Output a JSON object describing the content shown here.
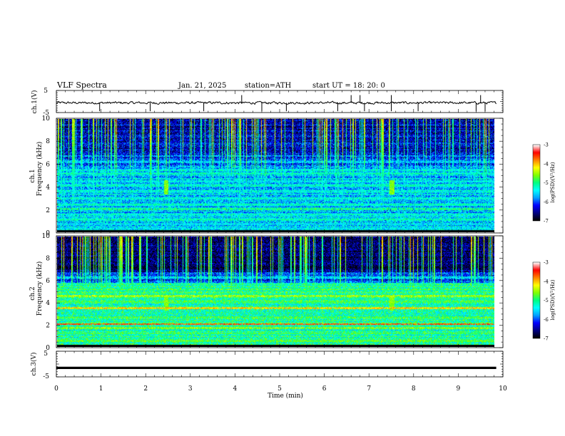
{
  "header": {
    "title": "VLF  Spectra",
    "date": "Jan. 21, 2025",
    "station": "station=ATH",
    "start": "start  UT  =   18: 20: 0"
  },
  "chart_data": [
    {
      "type": "line",
      "ylabel": "ch.1(V)",
      "ylim": [
        -5,
        5
      ],
      "yticks": [
        "5",
        "-5"
      ],
      "xlim": [
        0,
        10
      ],
      "trace": {
        "baseline": -0.6,
        "noise_amplitude": 0.6,
        "spikes_up": [
          4.15,
          6.6,
          6.8,
          7.5,
          9.5
        ],
        "spikes_down": [
          0.97,
          2.1,
          3.3,
          4.6,
          5.15,
          6.3,
          6.9,
          7.5,
          8.1,
          9.4,
          9.6
        ]
      }
    },
    {
      "type": "heatmap",
      "ylabel_top": "ch.1",
      "ylabel": "Frequency  (kHz)",
      "ylim": [
        0,
        10
      ],
      "yticks": [
        "0",
        "2",
        "4",
        "6",
        "8",
        "10"
      ],
      "xlim": [
        0,
        10
      ],
      "x_extent_min": 9.85,
      "colorbar": {
        "label": "log(PSD)(V²/Hz)",
        "range": [
          -7,
          -3
        ],
        "ticks": [
          "-3",
          "-4",
          "-5",
          "-6",
          "-7"
        ]
      },
      "bands": [
        {
          "f": 0.3,
          "level": -5.6
        },
        {
          "f": 0.7,
          "level": -5.6
        },
        {
          "f": 1.1,
          "level": -5.2
        },
        {
          "f": 1.5,
          "level": -5.4
        },
        {
          "f": 2.0,
          "level": -5.0
        },
        {
          "f": 2.4,
          "level": -5.3
        },
        {
          "f": 3.0,
          "level": -5.5
        },
        {
          "f": 3.6,
          "level": -5.4
        },
        {
          "f": 4.1,
          "level": -5.3
        },
        {
          "f": 4.5,
          "level": -5.5
        },
        {
          "f": 5.2,
          "level": -5.3
        },
        {
          "f": 5.5,
          "level": -5.5
        },
        {
          "f": 6.2,
          "level": -5.6
        }
      ],
      "bursts": [
        2.45,
        7.55
      ]
    },
    {
      "type": "heatmap",
      "ylabel_top": "ch.2",
      "ylabel": "Frequency  (kHz)",
      "ylim": [
        0,
        10
      ],
      "yticks": [
        "0",
        "2",
        "4",
        "6",
        "8",
        "10"
      ],
      "xlim": [
        0,
        10
      ],
      "x_extent_min": 9.85,
      "colorbar": {
        "label": "log(PSD)(V²/Hz)",
        "range": [
          -7,
          -3
        ],
        "ticks": [
          "-3",
          "-4",
          "-5",
          "-6",
          "-7"
        ]
      },
      "bands": [
        {
          "f": 0.5,
          "level": -4.8
        },
        {
          "f": 1.2,
          "level": -5.0
        },
        {
          "f": 1.7,
          "level": -4.6
        },
        {
          "f": 2.05,
          "level": -3.6
        },
        {
          "f": 2.7,
          "level": -4.8
        },
        {
          "f": 3.5,
          "level": -4.1
        },
        {
          "f": 4.1,
          "level": -5.0
        },
        {
          "f": 4.6,
          "level": -4.5
        },
        {
          "f": 5.2,
          "level": -5.2
        },
        {
          "f": 6.3,
          "level": -5.5
        }
      ],
      "bursts": [
        2.45,
        7.55
      ]
    },
    {
      "type": "line",
      "ylabel": "ch.3(V)",
      "ylim": [
        -5,
        5
      ],
      "yticks": [
        "5",
        "-5"
      ],
      "xlim": [
        0,
        10
      ],
      "xlabel": "Time  (min)",
      "xticks": [
        "0",
        "1",
        "2",
        "3",
        "4",
        "5",
        "6",
        "7",
        "8",
        "9",
        "10"
      ],
      "trace": {
        "baseline": -1.5,
        "noise_amplitude": 0.15
      }
    }
  ],
  "colors": {
    "colormap": [
      "#000000",
      "#000080",
      "#0000ff",
      "#00a0ff",
      "#00ffff",
      "#00ff80",
      "#80ff00",
      "#ffff00",
      "#ff8000",
      "#ff0000",
      "#ffffff"
    ]
  }
}
